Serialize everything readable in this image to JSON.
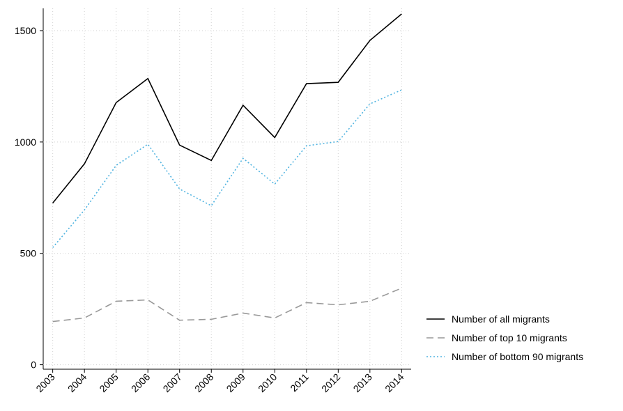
{
  "chart_data": {
    "type": "line",
    "x": [
      2003,
      2004,
      2005,
      2006,
      2007,
      2008,
      2009,
      2010,
      2011,
      2012,
      2013,
      2014
    ],
    "series": [
      {
        "name": "Number of all migrants",
        "color": "#000000",
        "dash": "solid",
        "values": [
          726,
          902,
          1177,
          1285,
          986,
          917,
          1165,
          1020,
          1262,
          1268,
          1456,
          1575
        ]
      },
      {
        "name": "Number of top 10 migrants",
        "color": "#999999",
        "dash": "dashed",
        "values": [
          194,
          210,
          285,
          291,
          200,
          204,
          232,
          210,
          279,
          269,
          285,
          344
        ]
      },
      {
        "name": "Number of bottom 90 migrants",
        "color": "#4fb3e0",
        "dash": "dotted",
        "values": [
          526,
          695,
          895,
          990,
          789,
          714,
          927,
          811,
          983,
          1002,
          1171,
          1234
        ]
      }
    ],
    "xlim": [
      2002.7,
      2014.3
    ],
    "ylim": [
      -20,
      1600
    ],
    "xticks": [
      2003,
      2004,
      2005,
      2006,
      2007,
      2008,
      2009,
      2010,
      2011,
      2012,
      2013,
      2014
    ],
    "yticks": [
      0,
      500,
      1000,
      1500
    ],
    "grid": true,
    "legend": "right"
  }
}
